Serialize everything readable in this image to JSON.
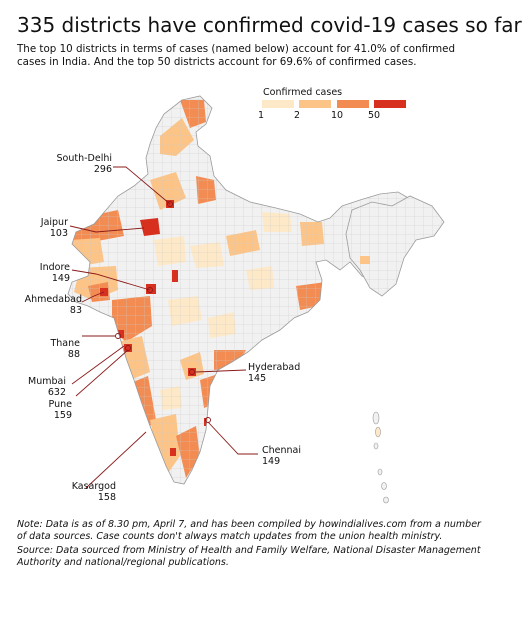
{
  "title": "335 districts have confirmed covid-19 cases so far",
  "subtitle": "The top 10 districts in terms of cases (named below) account for 41.0% of confirmed cases in India. And the top 50 districts account for 69.6% of confirmed cases.",
  "legend": {
    "title": "Confirmed cases",
    "bins": [
      {
        "label": "1",
        "color": "#fde9c8"
      },
      {
        "label": "2",
        "color": "#fcc487"
      },
      {
        "label": "10",
        "color": "#f38c52"
      },
      {
        "label": "50",
        "color": "#d7301f"
      }
    ]
  },
  "districts": [
    {
      "name": "South-Delhi",
      "cases": "296"
    },
    {
      "name": "Jaipur",
      "cases": "103"
    },
    {
      "name": "Indore",
      "cases": "149"
    },
    {
      "name": "Ahmedabad",
      "cases": "83"
    },
    {
      "name": "Thane",
      "cases": "88"
    },
    {
      "name": "Mumbai",
      "cases": "632"
    },
    {
      "name": "Pune",
      "cases": "159"
    },
    {
      "name": "Kasargod",
      "cases": "158"
    },
    {
      "name": "Hyderabad",
      "cases": "145"
    },
    {
      "name": "Chennai",
      "cases": "149"
    }
  ],
  "note": "Note: Data is as of 8.30 pm, April 7, and has been compiled by howindialives.com from a number of data sources. Case counts don't always match updates from the union health ministry.",
  "source": "Source: Data sourced from Ministry of Health and Family Welfare, National Disaster Management Authority and national/regional publications."
}
